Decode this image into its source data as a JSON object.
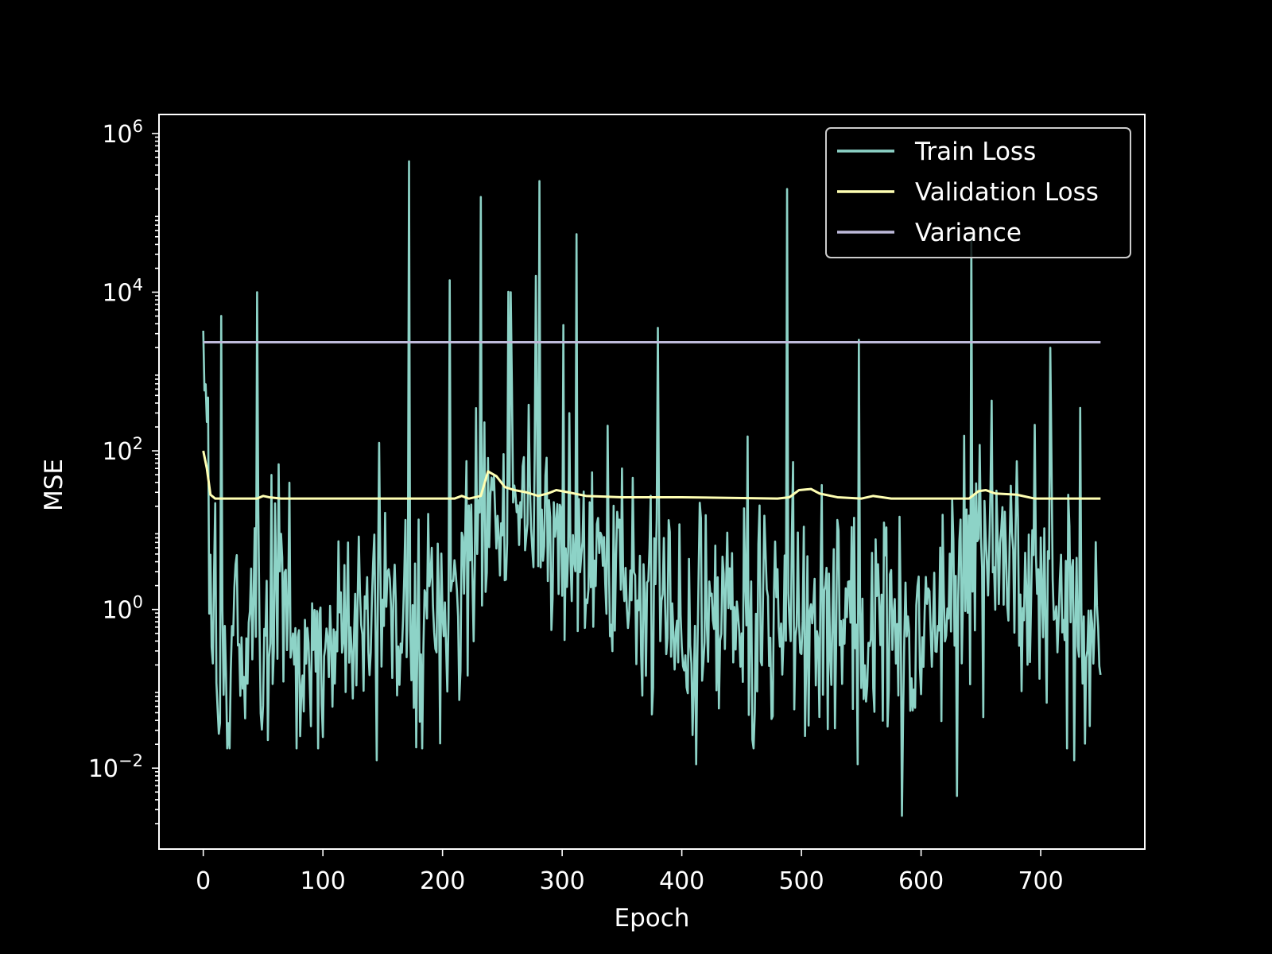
{
  "chart_data": {
    "type": "line",
    "title": "",
    "xlabel": "Epoch",
    "ylabel": "MSE",
    "xlim": [
      -37,
      787
    ],
    "ylim_log10": [
      -3.02,
      6.24
    ],
    "y_scale": "log",
    "grid": false,
    "legend_position": "top-right",
    "x_ticks": [
      0,
      100,
      200,
      300,
      400,
      500,
      600,
      700
    ],
    "x_tick_labels": [
      "0",
      "100",
      "200",
      "300",
      "400",
      "500",
      "600",
      "700"
    ],
    "y_ticks_exp": [
      -2,
      0,
      2,
      4,
      6
    ],
    "y_tick_base": "10",
    "y_tick_exponents": [
      "−2",
      "0",
      "2",
      "4",
      "6"
    ],
    "series": [
      {
        "name": "Train Loss",
        "color": "#8dd3c7",
        "kind": "noisy",
        "seed": 7,
        "x_end": 750,
        "x_step": 1,
        "baseline_log10": [
          [
            0,
            2.5
          ],
          [
            5,
            0.7
          ],
          [
            15,
            -0.6
          ],
          [
            50,
            -0.3
          ],
          [
            100,
            -0.5
          ],
          [
            150,
            -0.2
          ],
          [
            200,
            -0.2
          ],
          [
            230,
            0.9
          ],
          [
            245,
            1.3
          ],
          [
            270,
            1.0
          ],
          [
            300,
            0.8
          ],
          [
            350,
            0.5
          ],
          [
            400,
            0.0
          ],
          [
            450,
            -0.3
          ],
          [
            500,
            0.0
          ],
          [
            550,
            -0.3
          ],
          [
            600,
            -0.3
          ],
          [
            640,
            0.5
          ],
          [
            660,
            0.8
          ],
          [
            700,
            0.2
          ],
          [
            750,
            -0.5
          ]
        ],
        "noise_sd_log10": 0.7,
        "spikes": [
          [
            15,
            3.7
          ],
          [
            45,
            4.0
          ],
          [
            172,
            5.65
          ],
          [
            206,
            4.15
          ],
          [
            232,
            5.2
          ],
          [
            257,
            4.0
          ],
          [
            281,
            5.4
          ],
          [
            380,
            3.55
          ],
          [
            488,
            5.3
          ],
          [
            548,
            3.4
          ],
          [
            642,
            4.7
          ],
          [
            708,
            3.3
          ]
        ],
        "dips": [
          [
            145,
            -1.9
          ],
          [
            412,
            -1.95
          ],
          [
            547,
            -1.95
          ],
          [
            584,
            -2.6
          ],
          [
            630,
            -2.35
          ],
          [
            728,
            -1.9
          ]
        ],
        "last_value": 0.15
      },
      {
        "name": "Validation Loss",
        "color": "#ffffb3",
        "kind": "smooth",
        "points": [
          [
            0,
            100
          ],
          [
            3,
            60
          ],
          [
            6,
            28
          ],
          [
            10,
            25
          ],
          [
            20,
            25
          ],
          [
            45,
            25
          ],
          [
            50,
            27
          ],
          [
            55,
            26
          ],
          [
            65,
            25
          ],
          [
            210,
            25
          ],
          [
            216,
            27
          ],
          [
            222,
            25
          ],
          [
            232,
            27
          ],
          [
            238,
            55
          ],
          [
            245,
            48
          ],
          [
            252,
            35
          ],
          [
            260,
            32
          ],
          [
            270,
            30
          ],
          [
            280,
            27
          ],
          [
            288,
            29
          ],
          [
            295,
            32
          ],
          [
            305,
            30
          ],
          [
            320,
            27
          ],
          [
            350,
            26
          ],
          [
            400,
            26
          ],
          [
            480,
            25
          ],
          [
            490,
            26
          ],
          [
            498,
            32
          ],
          [
            508,
            33
          ],
          [
            515,
            29
          ],
          [
            530,
            26
          ],
          [
            550,
            25
          ],
          [
            560,
            27
          ],
          [
            575,
            25
          ],
          [
            640,
            25
          ],
          [
            648,
            31
          ],
          [
            654,
            32
          ],
          [
            662,
            29
          ],
          [
            680,
            28
          ],
          [
            695,
            25
          ],
          [
            750,
            25
          ]
        ]
      },
      {
        "name": "Variance",
        "color": "#bebada",
        "kind": "constant",
        "value": 2340,
        "x_range": [
          0,
          750
        ]
      }
    ]
  }
}
